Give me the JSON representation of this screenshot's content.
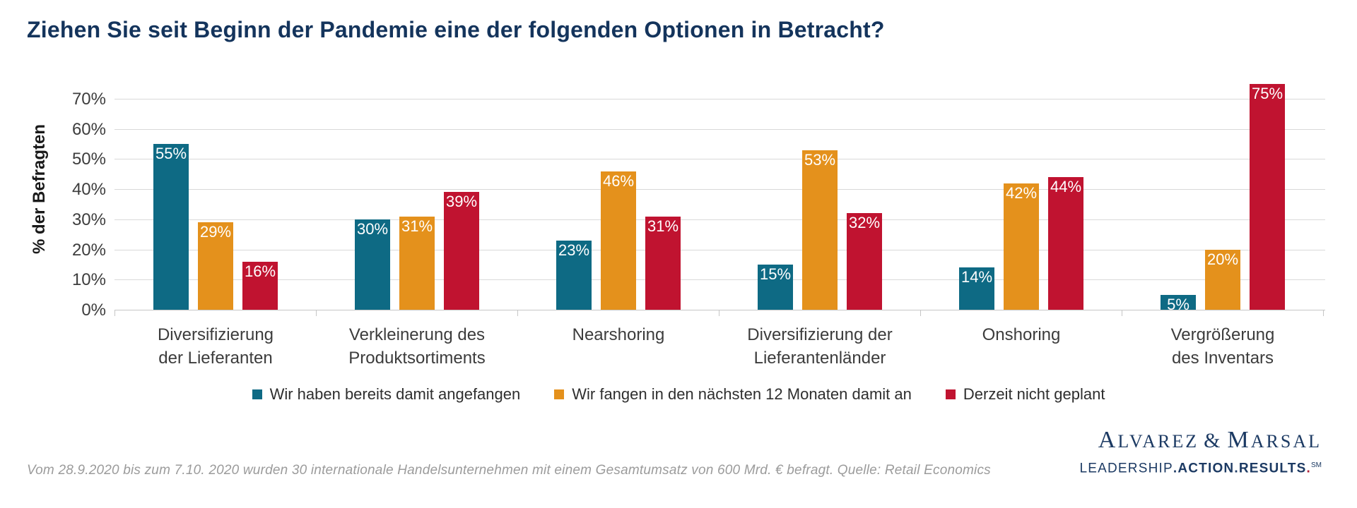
{
  "title": "Ziehen Sie seit Beginn der Pandemie eine der folgenden Optionen in Betracht?",
  "chart_data": {
    "type": "bar",
    "title": "Ziehen Sie seit Beginn der Pandemie eine der folgenden Optionen in Betracht?",
    "ylabel": "% der Befragten",
    "xlabel": "",
    "ylim": [
      0,
      80
    ],
    "ytick_step": 10,
    "ytick_max": 70,
    "grid": true,
    "legend_position": "bottom",
    "value_label_suffix": "%",
    "categories": [
      "Diversifizierung\nder Lieferanten",
      "Verkleinerung des\nProduktsortiments",
      "Nearshoring",
      "Diversifizierung der\nLieferantenländer",
      "Onshoring",
      "Vergrößerung\ndes Inventars"
    ],
    "series": [
      {
        "name": "Wir haben bereits damit angefangen",
        "color": "#0e6a84",
        "values": [
          55,
          30,
          23,
          15,
          14,
          5
        ]
      },
      {
        "name": "Wir fangen in den nächsten 12 Monaten damit an",
        "color": "#e4911c",
        "values": [
          29,
          31,
          46,
          53,
          42,
          20
        ]
      },
      {
        "name": "Derzeit nicht geplant",
        "color": "#c01330",
        "values": [
          16,
          39,
          31,
          32,
          44,
          75
        ]
      }
    ]
  },
  "footer": {
    "source_note": "Vom 28.9.2020 bis zum 7.10. 2020 wurden 30 internationale Handelsunternehmen mit einem Gesamtumsatz von 600 Mrd. € befragt. Quelle: Retail Economics"
  },
  "logo": {
    "wordmark": "Alvarez & Marsal",
    "tagline_parts": [
      {
        "text": "LEADERSHIP",
        "bold": false
      },
      {
        "text": "ACTION",
        "bold": true
      },
      {
        "text": "RESULTS",
        "bold": true
      }
    ],
    "service_mark": "SM",
    "navy": "#1c3a63",
    "red": "#b01e36"
  }
}
